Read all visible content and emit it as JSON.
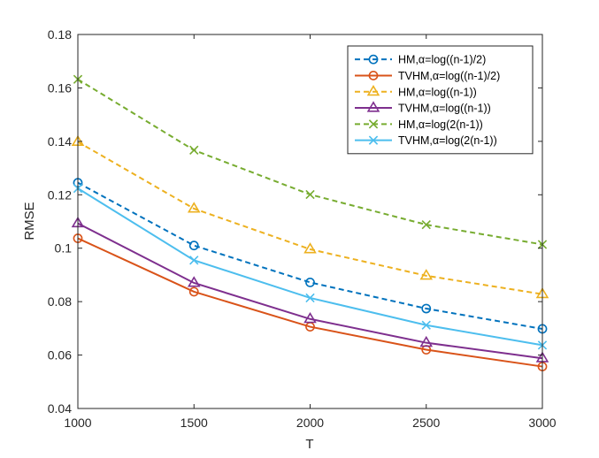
{
  "chart_data": {
    "type": "line",
    "title": "",
    "xlabel": "T",
    "ylabel": "RMSE",
    "x": [
      1000,
      1500,
      2000,
      2500,
      3000
    ],
    "xlim": [
      1000,
      3000
    ],
    "ylim": [
      0.04,
      0.18
    ],
    "xticks": [
      1000,
      1500,
      2000,
      2500,
      3000
    ],
    "yticks": [
      0.04,
      0.06,
      0.08,
      0.1,
      0.12,
      0.14,
      0.16,
      0.18
    ],
    "xtick_labels": [
      "1000",
      "1500",
      "2000",
      "2500",
      "3000"
    ],
    "ytick_labels": [
      "0.04",
      "0.06",
      "0.08",
      "0.1",
      "0.12",
      "0.14",
      "0.16",
      "0.18"
    ],
    "grid": false,
    "legend_position": "top-right",
    "series": [
      {
        "name": "HM,α=log((n-1)/2)",
        "values": [
          0.1245,
          0.101,
          0.0872,
          0.0774,
          0.0698
        ],
        "color": "#0072BD",
        "dash": "dashed",
        "marker": "circle"
      },
      {
        "name": "TVHM,α=log((n-1)/2)",
        "values": [
          0.1037,
          0.0837,
          0.0706,
          0.062,
          0.0557
        ],
        "color": "#D95319",
        "dash": "solid",
        "marker": "circle"
      },
      {
        "name": "HM,α=log((n-1))",
        "values": [
          0.1398,
          0.1148,
          0.0996,
          0.0897,
          0.0828
        ],
        "color": "#EDB120",
        "dash": "dashed",
        "marker": "triangle"
      },
      {
        "name": "TVHM,α=log((n-1))",
        "values": [
          0.1093,
          0.087,
          0.0735,
          0.0646,
          0.0588
        ],
        "color": "#7E2F8E",
        "dash": "solid",
        "marker": "triangle"
      },
      {
        "name": "HM,α=log(2(n-1))",
        "values": [
          0.1632,
          0.1367,
          0.1201,
          0.1088,
          0.1014
        ],
        "color": "#77AC30",
        "dash": "dashed",
        "marker": "x"
      },
      {
        "name": "TVHM,α=log(2(n-1))",
        "values": [
          0.1224,
          0.0955,
          0.0814,
          0.0712,
          0.0637
        ],
        "color": "#4DBEEE",
        "dash": "solid",
        "marker": "x"
      }
    ]
  }
}
